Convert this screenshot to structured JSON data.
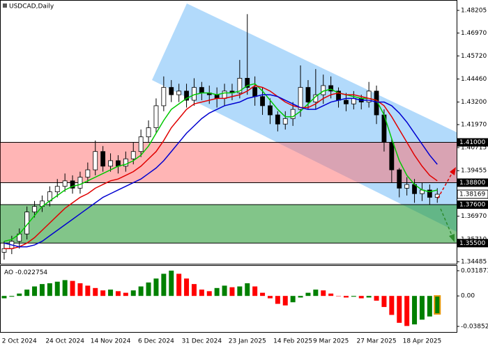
{
  "chart_data": [
    {
      "type": "candlestick",
      "title": "USDCAD,Daily",
      "categories": [
        null,
        null,
        "2 Oct 2024",
        null,
        null,
        null,
        null,
        null,
        "24 Oct 2024",
        null,
        null,
        null,
        null,
        null,
        "14 Nov 2024",
        null,
        null,
        null,
        null,
        null,
        "6 Dec 2024",
        null,
        null,
        null,
        null,
        null,
        "31 Dec 2024",
        null,
        null,
        null,
        null,
        null,
        "23 Jan 2025",
        null,
        null,
        null,
        null,
        null,
        "14 Feb 2025",
        null,
        null,
        null,
        null,
        "9 Mar 2025",
        null,
        null,
        null,
        null,
        null,
        "27 Mar 2025",
        null,
        null,
        null,
        null,
        null,
        "18 Apr 2025",
        null,
        null
      ],
      "open": [
        1.35,
        1.352,
        1.356,
        1.36,
        1.372,
        1.375,
        1.378,
        1.383,
        1.386,
        1.389,
        1.385,
        1.391,
        1.395,
        1.405,
        1.397,
        1.4,
        1.397,
        1.401,
        1.405,
        1.413,
        1.418,
        1.43,
        1.44,
        1.436,
        1.438,
        1.433,
        1.44,
        1.437,
        1.436,
        1.434,
        1.438,
        1.437,
        1.445,
        1.44,
        1.435,
        1.43,
        1.425,
        1.42,
        1.423,
        1.428,
        1.44,
        1.432,
        1.436,
        1.441,
        1.438,
        1.433,
        1.431,
        1.434,
        1.432,
        1.438,
        1.425,
        1.41,
        1.395,
        1.385,
        1.387,
        1.382,
        1.384,
        1.38
      ],
      "high": [
        1.356,
        1.359,
        1.363,
        1.375,
        1.378,
        1.381,
        1.386,
        1.39,
        1.393,
        1.392,
        1.394,
        1.399,
        1.411,
        1.408,
        1.404,
        1.403,
        1.405,
        1.41,
        1.417,
        1.422,
        1.434,
        1.446,
        1.444,
        1.442,
        1.442,
        1.445,
        1.443,
        1.441,
        1.44,
        1.442,
        1.442,
        1.455,
        1.48,
        1.446,
        1.44,
        1.434,
        1.427,
        1.427,
        1.432,
        1.452,
        1.444,
        1.45,
        1.447,
        1.446,
        1.44,
        1.437,
        1.438,
        1.436,
        1.443,
        1.441,
        1.428,
        1.412,
        1.396,
        1.391,
        1.39,
        1.388,
        1.387,
        1.385
      ],
      "low": [
        1.346,
        1.349,
        1.352,
        1.357,
        1.369,
        1.372,
        1.375,
        1.38,
        1.383,
        1.382,
        1.382,
        1.388,
        1.392,
        1.394,
        1.394,
        1.393,
        1.394,
        1.398,
        1.402,
        1.41,
        1.415,
        1.427,
        1.432,
        1.432,
        1.429,
        1.43,
        1.433,
        1.431,
        1.429,
        1.43,
        1.433,
        1.434,
        1.436,
        1.43,
        1.425,
        1.42,
        1.416,
        1.417,
        1.419,
        1.424,
        1.428,
        1.428,
        1.431,
        1.434,
        1.429,
        1.427,
        1.428,
        1.428,
        1.429,
        1.42,
        1.405,
        1.388,
        1.38,
        1.381,
        1.377,
        1.378,
        1.376,
        1.377
      ],
      "close": [
        1.352,
        1.356,
        1.36,
        1.372,
        1.375,
        1.378,
        1.383,
        1.386,
        1.389,
        1.385,
        1.391,
        1.395,
        1.405,
        1.397,
        1.4,
        1.397,
        1.401,
        1.405,
        1.413,
        1.418,
        1.43,
        1.44,
        1.436,
        1.438,
        1.433,
        1.44,
        1.437,
        1.436,
        1.434,
        1.438,
        1.437,
        1.445,
        1.44,
        1.435,
        1.43,
        1.425,
        1.42,
        1.423,
        1.428,
        1.44,
        1.432,
        1.436,
        1.441,
        1.438,
        1.433,
        1.431,
        1.434,
        1.432,
        1.438,
        1.425,
        1.41,
        1.395,
        1.385,
        1.387,
        1.382,
        1.384,
        1.38,
        1.38169
      ],
      "up_color": "#ffffff",
      "down_color": "#000000",
      "lines": [
        {
          "color": "#00c800",
          "values": [
            1.356,
            1.357,
            1.36,
            1.365,
            1.37,
            1.375,
            1.378,
            1.381,
            1.384,
            1.386,
            1.387,
            1.389,
            1.391,
            1.393,
            1.395,
            1.397,
            1.398,
            1.4,
            1.403,
            1.408,
            1.415,
            1.422,
            1.428,
            1.431,
            1.434,
            1.436,
            1.437,
            1.437,
            1.436,
            1.437,
            1.437,
            1.438,
            1.441,
            1.442,
            1.438,
            1.433,
            1.428,
            1.424,
            1.424,
            1.427,
            1.431,
            1.435,
            1.438,
            1.439,
            1.437,
            1.436,
            1.435,
            1.434,
            1.434,
            1.433,
            1.425,
            1.412,
            1.4,
            1.392,
            1.387,
            1.384,
            1.383,
            1.384
          ]
        },
        {
          "color": "#e00000",
          "values": [
            1.352,
            1.352,
            1.353,
            1.355,
            1.358,
            1.362,
            1.366,
            1.37,
            1.374,
            1.377,
            1.38,
            1.382,
            1.385,
            1.387,
            1.389,
            1.39,
            1.392,
            1.394,
            1.397,
            1.401,
            1.405,
            1.411,
            1.418,
            1.423,
            1.428,
            1.431,
            1.432,
            1.433,
            1.434,
            1.434,
            1.435,
            1.436,
            1.438,
            1.441,
            1.44,
            1.438,
            1.435,
            1.432,
            1.43,
            1.429,
            1.429,
            1.431,
            1.434,
            1.436,
            1.437,
            1.436,
            1.436,
            1.435,
            1.434,
            1.433,
            1.43,
            1.424,
            1.417,
            1.41,
            1.403,
            1.397,
            1.392,
            1.389
          ]
        },
        {
          "color": "#0000d0",
          "values": [
            1.355,
            1.354,
            1.353,
            1.353,
            1.354,
            1.356,
            1.359,
            1.362,
            1.365,
            1.368,
            1.371,
            1.374,
            1.377,
            1.38,
            1.382,
            1.384,
            1.386,
            1.388,
            1.39,
            1.393,
            1.396,
            1.4,
            1.405,
            1.41,
            1.415,
            1.419,
            1.423,
            1.426,
            1.428,
            1.43,
            1.431,
            1.432,
            1.434,
            1.435,
            1.436,
            1.436,
            1.435,
            1.433,
            1.431,
            1.429,
            1.428,
            1.428,
            1.43,
            1.432,
            1.433,
            1.434,
            1.434,
            1.433,
            1.433,
            1.432,
            1.432,
            1.43,
            1.426,
            1.421,
            1.415,
            1.409,
            1.403,
            1.398
          ]
        }
      ],
      "levels": [
        {
          "value": 1.41,
          "label": "1.41000"
        },
        {
          "value": 1.388,
          "label": "1.38800"
        },
        {
          "value": 1.376,
          "label": "1.37600"
        },
        {
          "value": 1.355,
          "label": "1.35500"
        }
      ],
      "zone_colors": [
        "#ff6b6b",
        "#2e9e3a"
      ],
      "ylim": [
        1.34372,
        1.48734
      ],
      "yticks": [
        1.48205,
        {
          "value": 1.4697,
          "label": "1.46970"
        },
        {
          "value": 1.4572,
          "label": "1.45720"
        },
        {
          "value": 1.4446,
          "label": "1.44460"
        },
        {
          "value": 1.432,
          "label": "1.43200"
        },
        {
          "value": 1.4197,
          "label": "1.41970"
        },
        1.40715,
        1.39455,
        {
          "value": 1.3697,
          "label": "1.36970"
        },
        {
          "value": 1.3571,
          "label": "1.35710"
        },
        1.34485
      ]
    },
    {
      "type": "bar",
      "title": "AO",
      "values": [
        -0.003,
        -0.001,
        0.003,
        0.008,
        0.012,
        0.015,
        0.016,
        0.018,
        0.02,
        0.019,
        0.016,
        0.013,
        0.01,
        0.007,
        0.008,
        0.006,
        0.004,
        0.007,
        0.012,
        0.017,
        0.022,
        0.028,
        0.032,
        0.028,
        0.022,
        0.015,
        0.008,
        0.006,
        0.01,
        0.013,
        0.011,
        0.012,
        0.016,
        0.012,
        0.004,
        -0.003,
        -0.01,
        -0.012,
        -0.008,
        -0.002,
        0.004,
        0.008,
        0.007,
        0.003,
        0.0,
        -0.002,
        -0.001,
        -0.003,
        -0.002,
        -0.006,
        -0.014,
        -0.024,
        -0.034,
        -0.038,
        -0.036,
        -0.03,
        -0.026,
        -0.022754
      ],
      "up_color": "#008000",
      "down_color": "#ff0000",
      "ylim": [
        -0.0456,
        0.038
      ],
      "yticks": [
        0.031873,
        {
          "value": 0,
          "label": "0.00"
        },
        -0.038529
      ]
    }
  ]
}
